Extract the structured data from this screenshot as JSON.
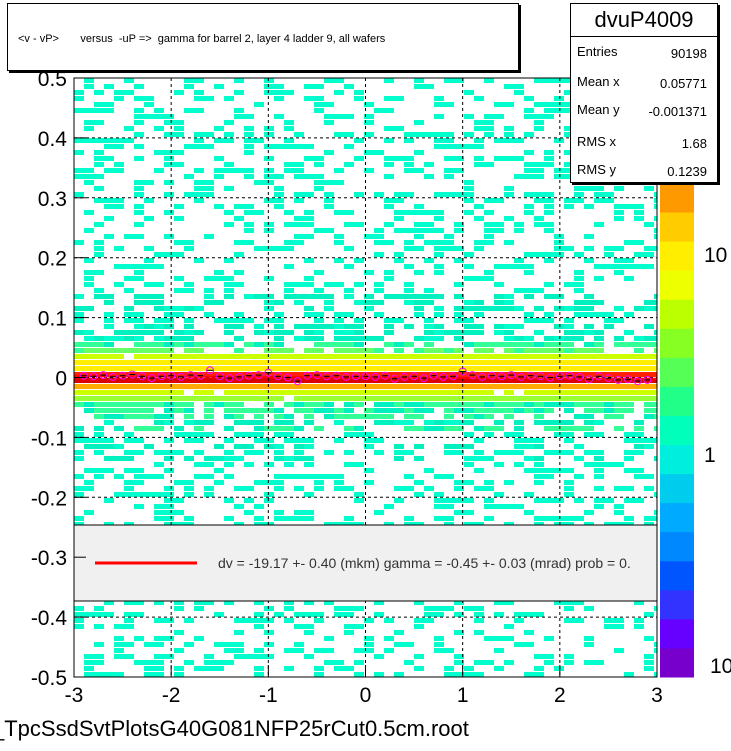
{
  "chart_data": {
    "type": "heatmap",
    "title": "<v - vP>       versus  -uP =>  gamma for barrel 2, layer 4 ladder 9, all wafers",
    "xlim": [
      -3,
      3
    ],
    "ylim": [
      -0.5,
      0.5
    ],
    "x_ticks": [
      "-3",
      "-2",
      "-1",
      "0",
      "1",
      "2",
      "3"
    ],
    "y_ticks": [
      "-0.5",
      "-0.4",
      "-0.3",
      "-0.2",
      "-0.1",
      "0",
      "0.1",
      "0.2",
      "0.3",
      "0.4",
      "0.5"
    ],
    "color_scale_ticks": [
      "10",
      "1",
      "10"
    ],
    "log_color_scale": true,
    "grid": true,
    "stats": {
      "name": "dvuP4009",
      "rows": [
        {
          "label": "Entries",
          "value": "90198"
        },
        {
          "label": "Mean x",
          "value": "0.05771"
        },
        {
          "label": "Mean y",
          "value": "-0.001371"
        },
        {
          "label": "RMS x",
          "value": "1.68"
        },
        {
          "label": "RMS y",
          "value": "0.1239"
        }
      ]
    },
    "legend": {
      "text": "dv =  -19.17 +-  0.40 (mkm) gamma =    -0.45 +-  0.03 (mrad) prob = 0.",
      "line_color": "#ff0000",
      "placement": "bottom-center"
    },
    "profile_points": {
      "x": [
        -2.9,
        -2.8,
        -2.7,
        -2.6,
        -2.5,
        -2.4,
        -2.3,
        -2.2,
        -2.1,
        -2.0,
        -1.9,
        -1.8,
        -1.7,
        -1.6,
        -1.5,
        -1.4,
        -1.3,
        -1.2,
        -1.1,
        -1.0,
        -0.9,
        -0.8,
        -0.7,
        -0.6,
        -0.5,
        -0.4,
        -0.3,
        -0.2,
        -0.1,
        0.0,
        0.1,
        0.2,
        0.3,
        0.4,
        0.5,
        0.6,
        0.7,
        0.8,
        0.9,
        1.0,
        1.1,
        1.2,
        1.3,
        1.4,
        1.5,
        1.6,
        1.7,
        1.8,
        1.9,
        2.0,
        2.1,
        2.2,
        2.3,
        2.4,
        2.5,
        2.6,
        2.7,
        2.8,
        2.9
      ],
      "y": [
        0.003,
        0.002,
        0.004,
        0.001,
        0.003,
        0.005,
        0.002,
        -0.001,
        0.002,
        0.003,
        0.001,
        0.004,
        0.003,
        0.012,
        0.002,
        -0.001,
        0.001,
        0.003,
        0.004,
        0.008,
        0.002,
        0.0,
        -0.006,
        0.003,
        0.004,
        0.002,
        0.003,
        0.001,
        0.002,
        0.002,
        0.001,
        0.003,
        -0.002,
        0.001,
        0.002,
        -0.001,
        0.003,
        0.001,
        0.002,
        0.01,
        0.004,
        0.001,
        0.003,
        0.002,
        0.004,
        0.001,
        0.003,
        0.002,
        0.0,
        0.002,
        0.003,
        0.001,
        -0.003,
        0.002,
        -0.001,
        -0.004,
        -0.003,
        -0.006,
        -0.004
      ]
    },
    "fit_line": {
      "color": "#ff0000"
    }
  },
  "footer": {
    "filename": "_TpcSsdSvtPlotsG40G081NFP25rCut0.5cm.root"
  }
}
